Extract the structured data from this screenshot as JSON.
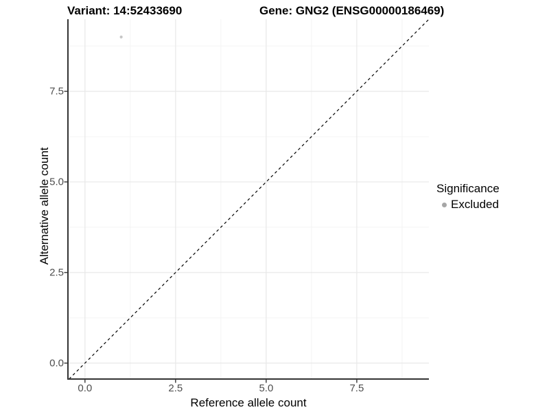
{
  "chart_data": {
    "type": "scatter",
    "title_left": "Variant: 14:52433690",
    "title_right": "Gene: GNG2 (ENSG00000186469)",
    "xlabel": "Reference allele count",
    "ylabel": "Alternative allele count",
    "xlim": [
      -0.47,
      9.49
    ],
    "ylim": [
      -0.44,
      9.49
    ],
    "xticks": {
      "values": [
        0,
        2.5,
        5,
        7.5
      ],
      "labels": [
        "0.0",
        "2.5",
        "5.0",
        "7.5"
      ]
    },
    "yticks": {
      "values": [
        0,
        2.5,
        5,
        7.5
      ],
      "labels": [
        "0.0",
        "2.5",
        "5.0",
        "7.5"
      ]
    },
    "xticks_minor": [
      1.25,
      3.75,
      6.25,
      8.75
    ],
    "yticks_minor": [
      1.25,
      3.75,
      6.25,
      8.75
    ],
    "grid": "on",
    "points": [
      {
        "x": 1,
        "y": 9,
        "significance": "Excluded",
        "color": "#c6c6c6"
      }
    ],
    "identity_line": {
      "equation": "y = x",
      "style": "dashed",
      "color": "#000000"
    },
    "legend": {
      "title": "Significance",
      "position": "right",
      "entries": [
        {
          "label": "Excluded",
          "color": "#a6a6a6"
        }
      ]
    },
    "colors": {
      "background": "#ffffff",
      "axis_line": "#333333",
      "tick_label": "#4d4d4d",
      "grid_major": "#e8e8e8",
      "grid_minor": "#f4f4f4"
    }
  }
}
